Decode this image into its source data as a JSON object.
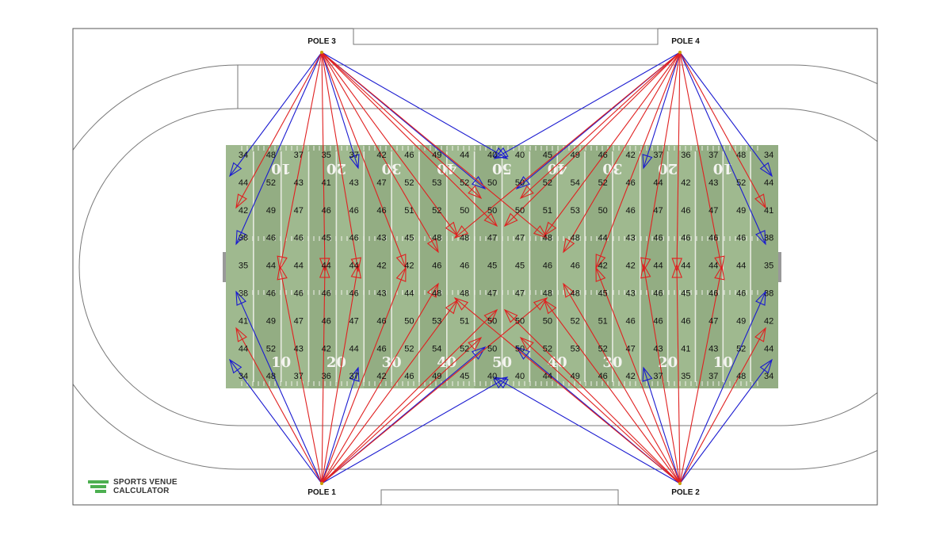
{
  "poles": [
    {
      "id": "pole-3",
      "label": "POLE 3"
    },
    {
      "id": "pole-4",
      "label": "POLE 4"
    },
    {
      "id": "pole-1",
      "label": "POLE 1"
    },
    {
      "id": "pole-2",
      "label": "POLE 2"
    }
  ],
  "logo": {
    "line1": "SPORTS VENUE",
    "line2": "CALCULATOR",
    "color": "#4caf50"
  },
  "colors": {
    "aim_primary": "#e02020",
    "aim_secondary": "#1a1ad0",
    "turf": "#9fb98f",
    "turf_dark": "#93ad83",
    "track_line": "#777777"
  },
  "field": {
    "yard_numbers": [
      "10",
      "20",
      "30",
      "40",
      "50",
      "40",
      "30",
      "20",
      "10"
    ]
  },
  "illuminance_grid": [
    [
      34,
      48,
      37,
      35,
      37,
      42,
      46,
      49,
      44,
      40,
      40,
      45,
      49,
      46,
      42,
      37,
      36,
      37,
      48,
      34
    ],
    [
      44,
      52,
      43,
      41,
      43,
      47,
      52,
      53,
      52,
      50,
      50,
      52,
      54,
      52,
      46,
      44,
      42,
      43,
      52,
      44
    ],
    [
      42,
      49,
      47,
      46,
      46,
      46,
      51,
      52,
      50,
      50,
      50,
      51,
      53,
      50,
      46,
      47,
      46,
      47,
      49,
      41
    ],
    [
      38,
      46,
      46,
      45,
      46,
      43,
      45,
      48,
      48,
      47,
      47,
      48,
      48,
      44,
      43,
      46,
      46,
      46,
      46,
      38
    ],
    [
      35,
      44,
      44,
      44,
      44,
      42,
      42,
      46,
      46,
      45,
      45,
      46,
      46,
      42,
      42,
      44,
      44,
      44,
      44,
      35
    ],
    [
      38,
      46,
      46,
      46,
      46,
      43,
      44,
      48,
      48,
      47,
      47,
      48,
      48,
      45,
      43,
      46,
      45,
      46,
      46,
      38
    ],
    [
      41,
      49,
      47,
      46,
      47,
      46,
      50,
      53,
      51,
      50,
      50,
      50,
      52,
      51,
      46,
      46,
      46,
      47,
      49,
      42
    ],
    [
      44,
      52,
      43,
      42,
      44,
      46,
      52,
      54,
      52,
      50,
      50,
      52,
      53,
      52,
      47,
      43,
      41,
      43,
      52,
      44
    ],
    [
      34,
      48,
      37,
      36,
      37,
      42,
      46,
      49,
      45,
      40,
      40,
      44,
      49,
      46,
      42,
      37,
      35,
      37,
      48,
      34
    ]
  ]
}
